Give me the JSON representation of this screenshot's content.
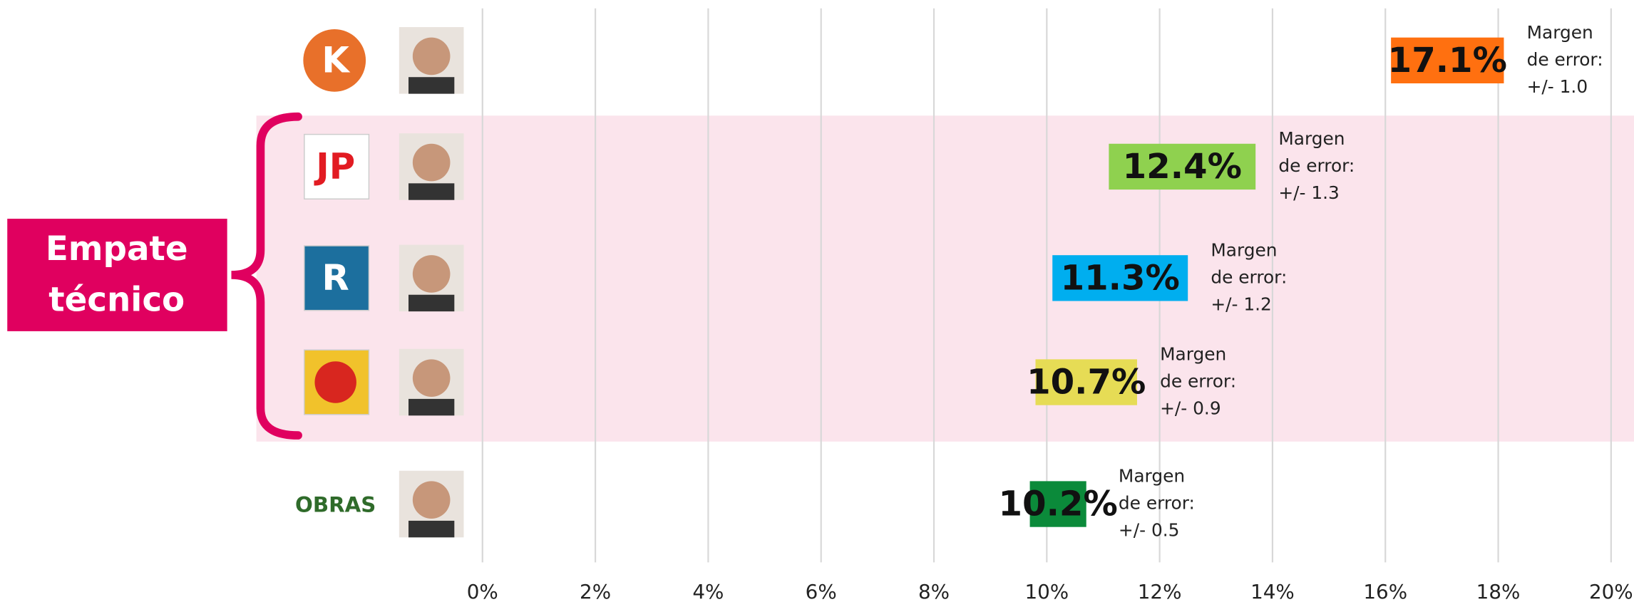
{
  "chart_data": {
    "type": "range-bar",
    "logos": [
      "K",
      "JP",
      "R",
      null,
      "OBRAS"
    ],
    "series": [
      {
        "values": [
          17.1,
          12.4,
          11.3,
          10.7,
          10.2
        ],
        "value_labels": [
          "17.1%",
          "12.4%",
          "11.3%",
          "10.7%",
          "10.2%"
        ],
        "errors": [
          1.0,
          1.3,
          1.2,
          0.9,
          0.5
        ],
        "error_labels": [
          "+/- 1.0",
          "+/- 1.3",
          "+/- 1.2",
          "+/- 0.9",
          "+/- 0.5"
        ],
        "colors": [
          "#ff7010",
          "#8fd14f",
          "#00aeef",
          "#e6dc55",
          "#0b8a3a"
        ]
      }
    ],
    "error_title": [
      "Margen",
      "de error:"
    ],
    "annotation": [
      "Empate",
      "técnico"
    ],
    "xlim": [
      0,
      20
    ],
    "xticks": [
      {
        "value": 0,
        "label": "0%"
      },
      {
        "value": 2,
        "label": "2%"
      },
      {
        "value": 4,
        "label": "4%"
      },
      {
        "value": 6,
        "label": "6%"
      },
      {
        "value": 8,
        "label": "8%"
      },
      {
        "value": 10,
        "label": "10%"
      },
      {
        "value": 12,
        "label": "12%"
      },
      {
        "value": 14,
        "label": "14%"
      },
      {
        "value": 16,
        "label": "16%"
      },
      {
        "value": 18,
        "label": "18%"
      },
      {
        "value": 20,
        "label": "20%"
      }
    ],
    "grid": true
  }
}
